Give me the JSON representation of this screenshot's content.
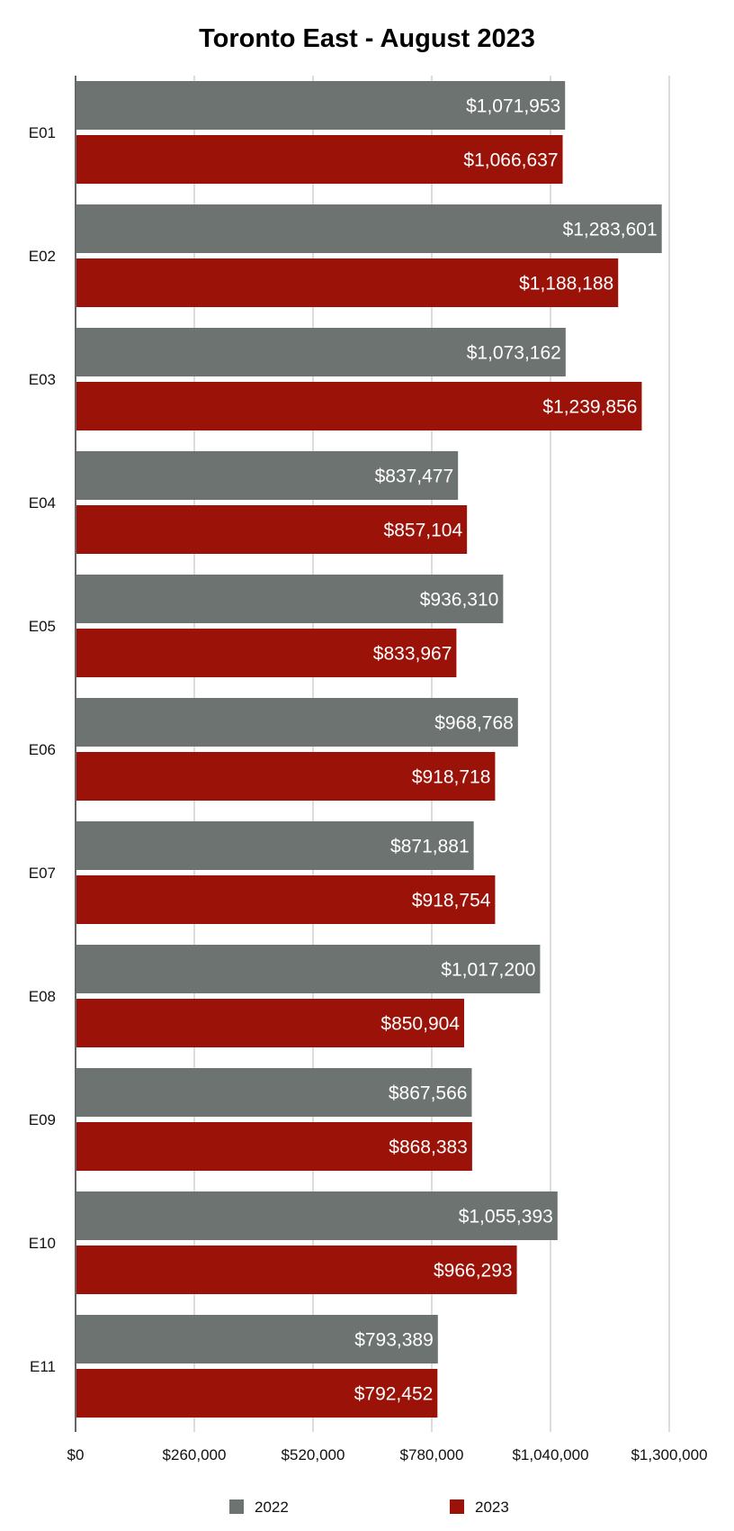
{
  "chart_data": {
    "type": "bar",
    "orientation": "horizontal",
    "title": "Toronto East - August 2023",
    "categories": [
      "E01",
      "E02",
      "E03",
      "E04",
      "E05",
      "E06",
      "E07",
      "E08",
      "E09",
      "E10",
      "E11"
    ],
    "series": [
      {
        "name": "2022",
        "color": "#6d7370",
        "values": [
          1071953,
          1283601,
          1073162,
          837477,
          936310,
          968768,
          871881,
          1017200,
          867566,
          1055393,
          793389
        ],
        "labels": [
          "$1,071,953",
          "$1,283,601",
          "$1,073,162",
          "$837,477",
          "$936,310",
          "$968,768",
          "$871,881",
          "$1,017,200",
          "$867,566",
          "$1,055,393",
          "$793,389"
        ]
      },
      {
        "name": "2023",
        "color": "#9b1208",
        "values": [
          1066637,
          1188188,
          1239856,
          857104,
          833967,
          918718,
          918754,
          850904,
          868383,
          966293,
          792452
        ],
        "labels": [
          "$1,066,637",
          "$1,188,188",
          "$1,239,856",
          "$857,104",
          "$833,967",
          "$918,718",
          "$918,754",
          "$850,904",
          "$868,383",
          "$966,293",
          "$792,452"
        ]
      }
    ],
    "xlim": [
      0,
      1300000
    ],
    "x_ticks": [
      0,
      260000,
      520000,
      780000,
      1040000,
      1300000
    ],
    "x_tick_labels": [
      "$0",
      "$260,000",
      "$520,000",
      "$780,000",
      "$1,040,000",
      "$1,300,000"
    ],
    "grid": "vertical",
    "legend_position": "bottom"
  }
}
